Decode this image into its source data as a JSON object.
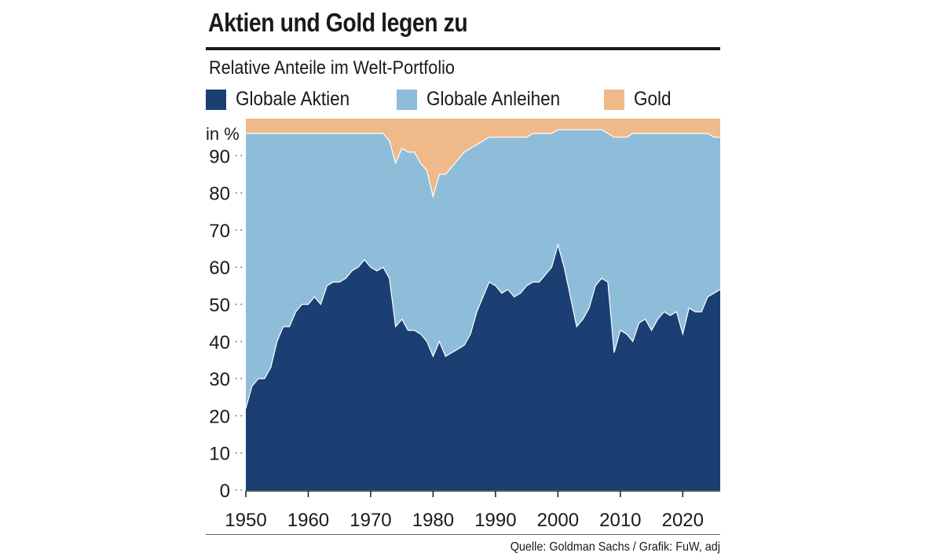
{
  "header": {
    "title": "Aktien und Gold legen zu",
    "subtitle": "Relative Anteile im Welt-Portfolio"
  },
  "legend": [
    {
      "label": "Globale Aktien",
      "color": "#1b3f73"
    },
    {
      "label": "Globale Anleihen",
      "color": "#8ebdd9"
    },
    {
      "label": "Gold",
      "color": "#f0b98a"
    }
  ],
  "source": "Quelle: Goldman Sachs / Grafik: FuW, adj",
  "chart_data": {
    "type": "area",
    "stacked": true,
    "ylabel": "in %",
    "xlim": [
      1950,
      2026
    ],
    "ylim": [
      0,
      100
    ],
    "y_ticks": [
      0,
      10,
      20,
      30,
      40,
      50,
      60,
      70,
      80,
      90
    ],
    "x_ticks": [
      1950,
      1960,
      1970,
      1980,
      1990,
      2000,
      2010,
      2020
    ],
    "grid": false,
    "legend_position": "top",
    "x": [
      1950,
      1951,
      1952,
      1953,
      1954,
      1955,
      1956,
      1957,
      1958,
      1959,
      1960,
      1961,
      1962,
      1963,
      1964,
      1965,
      1966,
      1967,
      1968,
      1969,
      1970,
      1971,
      1972,
      1973,
      1974,
      1975,
      1976,
      1977,
      1978,
      1979,
      1980,
      1981,
      1982,
      1983,
      1984,
      1985,
      1986,
      1987,
      1988,
      1989,
      1990,
      1991,
      1992,
      1993,
      1994,
      1995,
      1996,
      1997,
      1998,
      1999,
      2000,
      2001,
      2002,
      2003,
      2004,
      2005,
      2006,
      2007,
      2008,
      2009,
      2010,
      2011,
      2012,
      2013,
      2014,
      2015,
      2016,
      2017,
      2018,
      2019,
      2020,
      2021,
      2022,
      2023,
      2024,
      2025,
      2026
    ],
    "series": [
      {
        "name": "Globale Aktien",
        "color": "#1b3f73",
        "values": [
          22,
          28,
          30,
          30,
          33,
          40,
          44,
          44,
          48,
          50,
          50,
          52,
          50,
          55,
          56,
          56,
          57,
          59,
          60,
          62,
          60,
          59,
          60,
          57,
          44,
          46,
          43,
          43,
          42,
          40,
          36,
          40,
          36,
          37,
          38,
          39,
          42,
          48,
          52,
          56,
          55,
          53,
          54,
          52,
          53,
          55,
          56,
          56,
          58,
          60,
          66,
          60,
          52,
          44,
          46,
          49,
          55,
          57,
          56,
          37,
          43,
          42,
          40,
          45,
          46,
          43,
          46,
          48,
          47,
          48,
          42,
          49,
          48,
          48,
          52,
          53,
          54
        ]
      },
      {
        "name": "Globale Anleihen",
        "color": "#8ebdd9",
        "values": [
          74,
          68,
          66,
          66,
          63,
          56,
          52,
          52,
          48,
          46,
          46,
          44,
          46,
          41,
          40,
          40,
          39,
          37,
          36,
          34,
          36,
          37,
          36,
          37,
          44,
          46,
          48,
          48,
          46,
          46,
          43,
          45,
          49,
          50,
          51,
          52,
          50,
          45,
          42,
          39,
          40,
          42,
          41,
          43,
          42,
          40,
          40,
          40,
          38,
          36,
          31,
          37,
          45,
          53,
          51,
          48,
          42,
          40,
          40,
          58,
          52,
          53,
          56,
          51,
          50,
          53,
          50,
          48,
          49,
          48,
          54,
          47,
          48,
          48,
          44,
          42,
          41
        ]
      },
      {
        "name": "Gold",
        "color": "#f0b98a",
        "values": [
          4,
          4,
          4,
          4,
          4,
          4,
          4,
          4,
          4,
          4,
          4,
          4,
          4,
          4,
          4,
          4,
          4,
          4,
          4,
          4,
          4,
          4,
          4,
          6,
          12,
          8,
          9,
          9,
          12,
          14,
          21,
          15,
          15,
          13,
          11,
          9,
          8,
          7,
          6,
          5,
          5,
          5,
          5,
          5,
          5,
          5,
          4,
          4,
          4,
          4,
          3,
          3,
          3,
          3,
          3,
          3,
          3,
          3,
          4,
          5,
          5,
          5,
          4,
          4,
          4,
          4,
          4,
          4,
          4,
          4,
          4,
          4,
          4,
          4,
          4,
          5,
          5
        ]
      }
    ]
  }
}
